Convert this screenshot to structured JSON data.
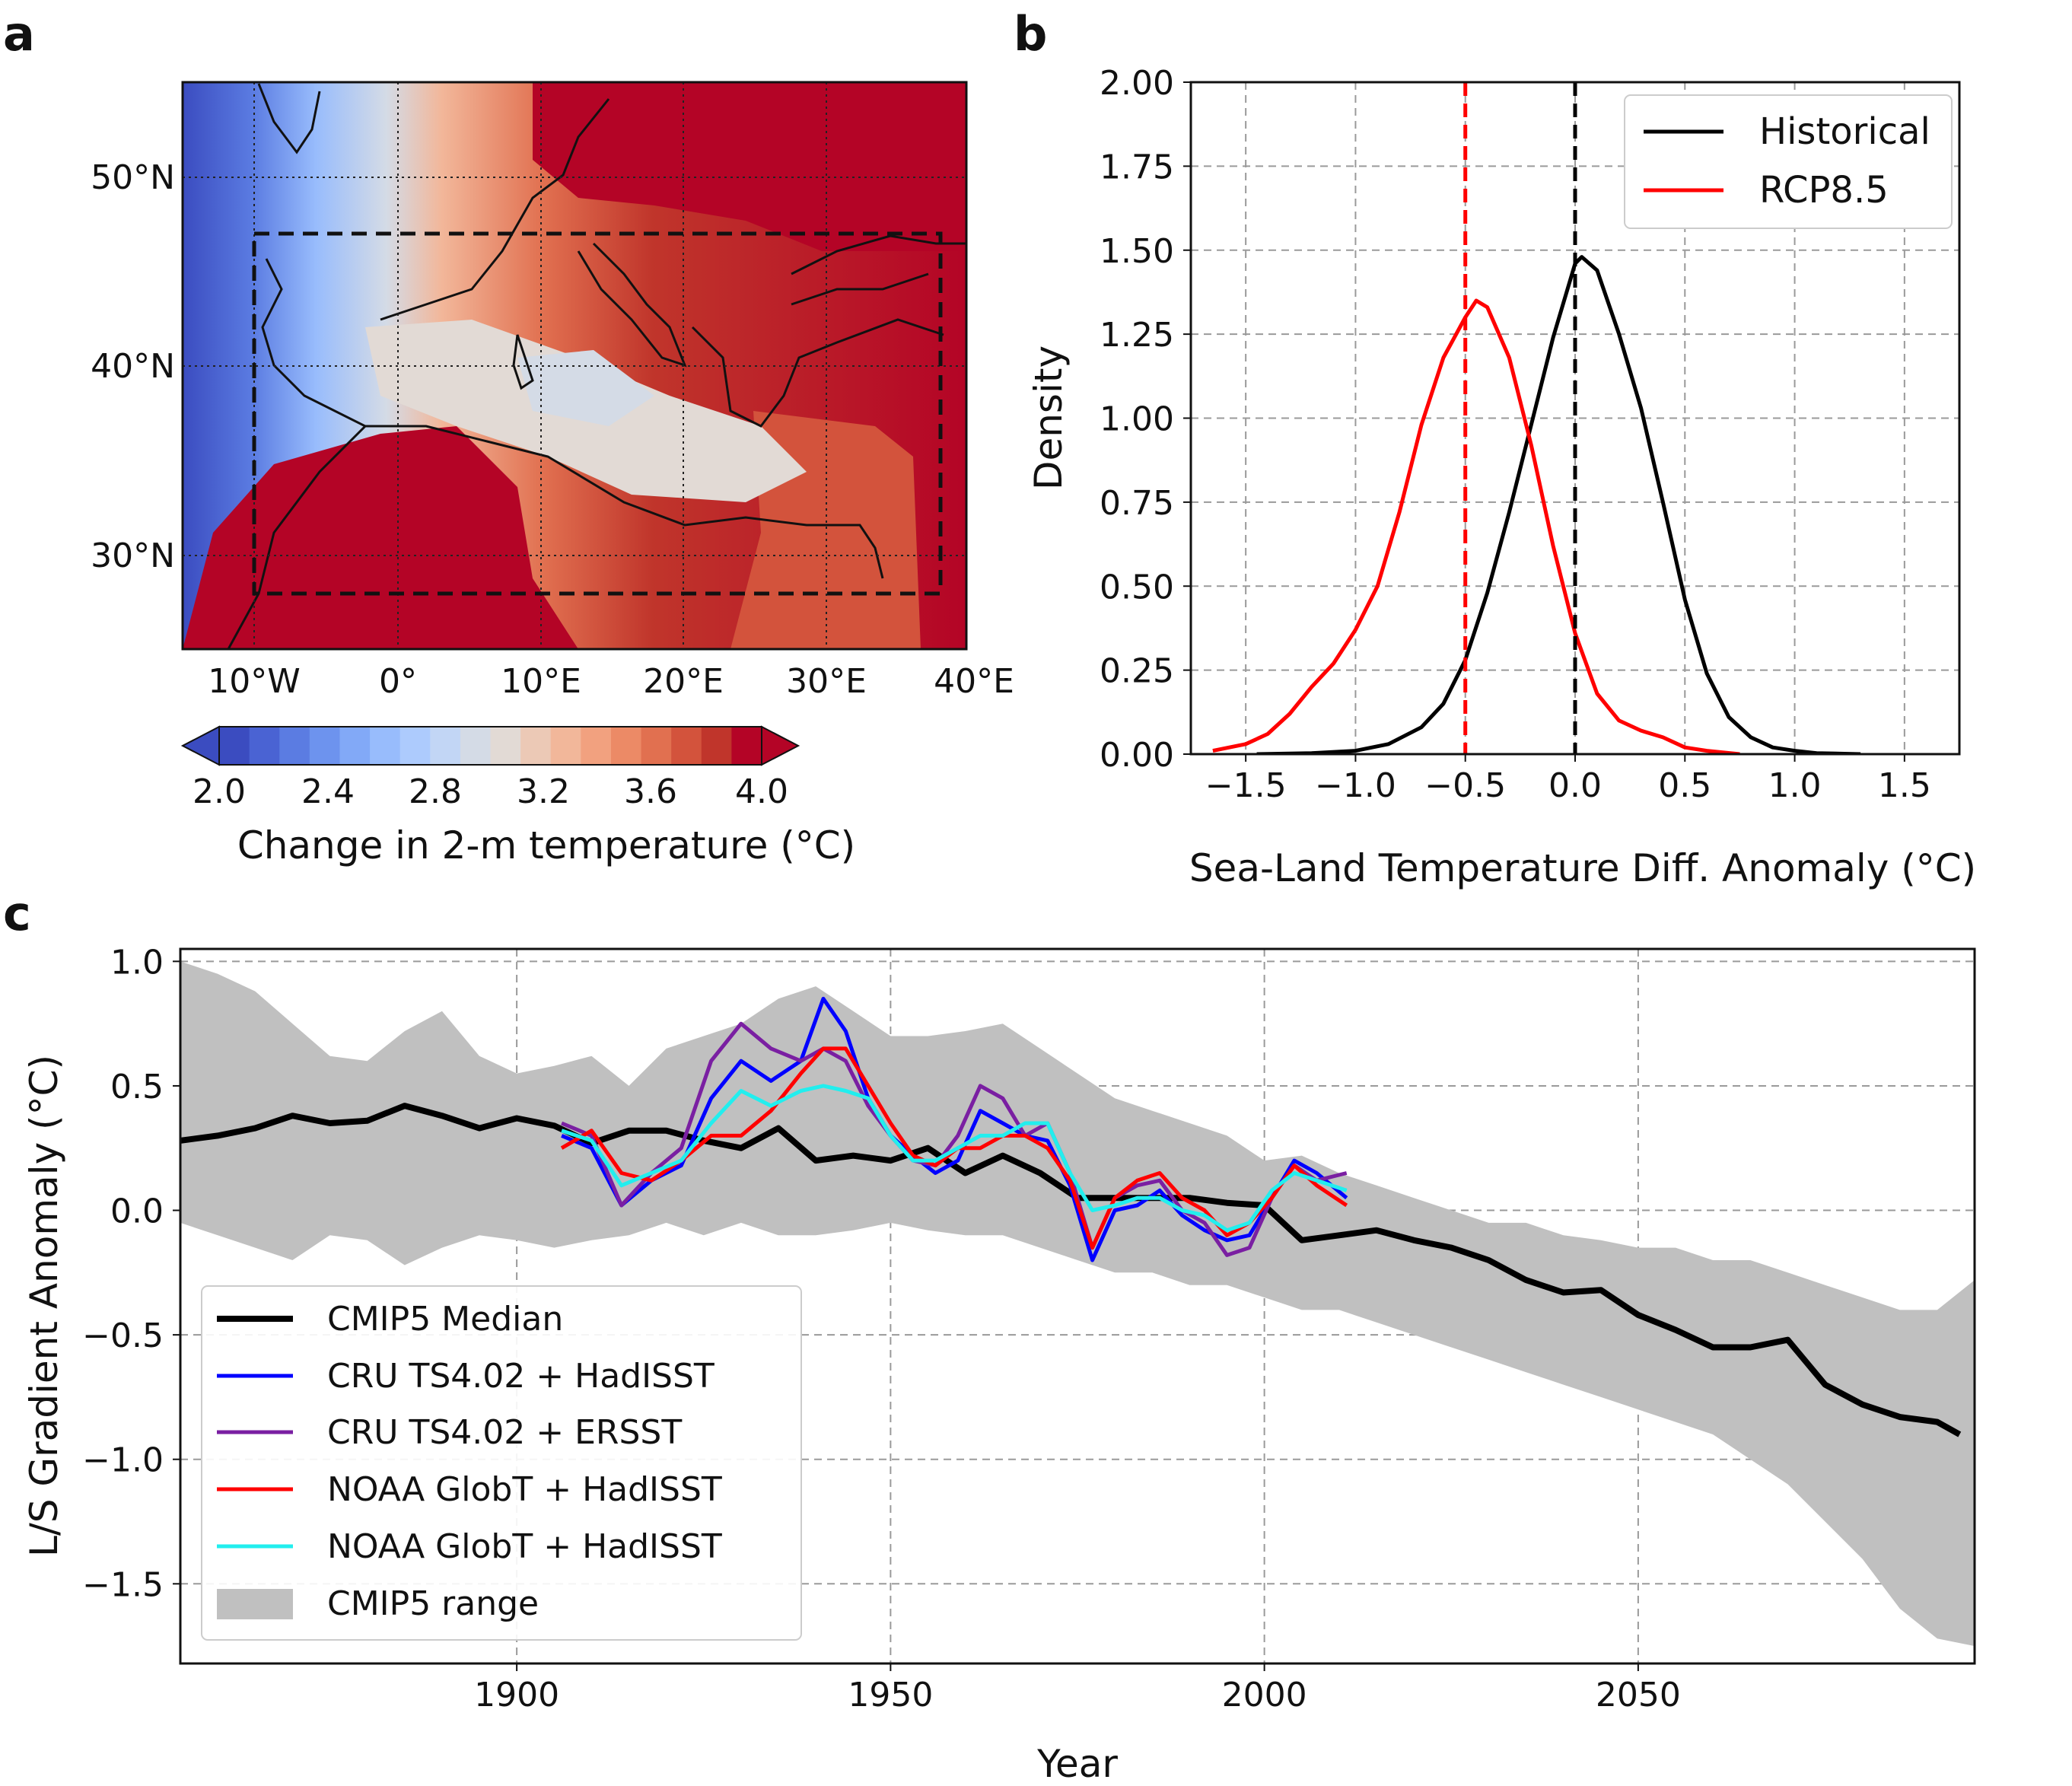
{
  "panels": {
    "a": {
      "label": "a",
      "lat_labels": [
        "50°N",
        "40°N",
        "30°N"
      ],
      "lon_labels": [
        "10°W",
        "0°",
        "10°E",
        "20°E",
        "30°E",
        "40°E"
      ],
      "colorbar": {
        "ticks": [
          "2.0",
          "2.4",
          "2.8",
          "3.2",
          "3.6",
          "4.0"
        ],
        "label": "Change in 2-m temperature (°C)",
        "colors": [
          "#3b4cc0",
          "#4a63d3",
          "#5b7ce2",
          "#6d93ee",
          "#82a9f7",
          "#98bcfc",
          "#adcbfd",
          "#c2d6f5",
          "#d4dbe6",
          "#e2dad5",
          "#ecc9b6",
          "#f2b79a",
          "#f2a17f",
          "#ec8a66",
          "#e17050",
          "#d3533c",
          "#c0352b",
          "#b40426"
        ]
      }
    },
    "b": {
      "label": "b"
    },
    "c": {
      "label": "c"
    }
  },
  "chart_data": [
    {
      "type": "line",
      "panel": "b",
      "xlabel": "Sea-Land Temperature Diff. Anomaly (°C)",
      "ylabel": "Density",
      "xlim": [
        -1.75,
        1.75
      ],
      "ylim": [
        0.0,
        2.0
      ],
      "xticks": [
        "−1.5",
        "−1.0",
        "−0.5",
        "0.0",
        "0.5",
        "1.0",
        "1.5"
      ],
      "yticks": [
        "0.00",
        "0.25",
        "0.50",
        "0.75",
        "1.00",
        "1.25",
        "1.50",
        "1.75",
        "2.00"
      ],
      "grid": true,
      "legend_position": "top-right",
      "series": [
        {
          "name": "Historical",
          "color": "#000000",
          "x": [
            -1.45,
            -1.2,
            -1.0,
            -0.85,
            -0.7,
            -0.6,
            -0.5,
            -0.4,
            -0.3,
            -0.2,
            -0.1,
            0.0,
            0.03,
            0.1,
            0.2,
            0.3,
            0.4,
            0.5,
            0.6,
            0.7,
            0.8,
            0.9,
            1.0,
            1.1,
            1.3
          ],
          "y": [
            0.0,
            0.003,
            0.01,
            0.03,
            0.08,
            0.15,
            0.28,
            0.48,
            0.72,
            0.98,
            1.24,
            1.46,
            1.48,
            1.44,
            1.25,
            1.03,
            0.75,
            0.46,
            0.24,
            0.11,
            0.05,
            0.02,
            0.01,
            0.003,
            0.0
          ]
        },
        {
          "name": "RCP8.5",
          "color": "#ff0000",
          "x": [
            -1.65,
            -1.5,
            -1.4,
            -1.3,
            -1.2,
            -1.1,
            -1.0,
            -0.9,
            -0.8,
            -0.7,
            -0.6,
            -0.5,
            -0.45,
            -0.4,
            -0.3,
            -0.2,
            -0.1,
            0.0,
            0.1,
            0.2,
            0.3,
            0.4,
            0.5,
            0.6,
            0.75
          ],
          "y": [
            0.01,
            0.03,
            0.06,
            0.12,
            0.2,
            0.27,
            0.37,
            0.5,
            0.72,
            0.98,
            1.18,
            1.3,
            1.35,
            1.33,
            1.18,
            0.92,
            0.62,
            0.36,
            0.18,
            0.1,
            0.07,
            0.05,
            0.02,
            0.01,
            0.0
          ]
        }
      ],
      "vlines": [
        {
          "x": -0.5,
          "color": "#ff0000",
          "style": "dashed"
        },
        {
          "x": 0.0,
          "color": "#000000",
          "style": "dashed"
        }
      ]
    },
    {
      "type": "line",
      "panel": "c",
      "xlabel": "Year",
      "ylabel": "L/S Gradient Anomaly (°C)",
      "xlim": [
        1855,
        2095
      ],
      "ylim": [
        -1.82,
        1.05
      ],
      "xticks": [
        "1900",
        "1950",
        "2000",
        "2050"
      ],
      "yticks": [
        "1.0",
        "0.5",
        "0.0",
        "−0.5",
        "−1.0",
        "−1.5"
      ],
      "grid": true,
      "legend_position": "bottom-left",
      "band": {
        "name": "CMIP5 range",
        "color": "#c0c0c0",
        "x": [
          1855,
          1860,
          1865,
          1870,
          1875,
          1880,
          1885,
          1890,
          1895,
          1900,
          1905,
          1910,
          1915,
          1920,
          1925,
          1930,
          1935,
          1940,
          1945,
          1950,
          1955,
          1960,
          1965,
          1970,
          1975,
          1980,
          1985,
          1990,
          1995,
          2000,
          2005,
          2010,
          2015,
          2020,
          2025,
          2030,
          2035,
          2040,
          2045,
          2050,
          2055,
          2060,
          2065,
          2070,
          2075,
          2080,
          2085,
          2090,
          2095
        ],
        "upper": [
          1.0,
          0.95,
          0.88,
          0.75,
          0.62,
          0.6,
          0.72,
          0.8,
          0.62,
          0.55,
          0.58,
          0.62,
          0.5,
          0.65,
          0.7,
          0.75,
          0.85,
          0.9,
          0.8,
          0.7,
          0.7,
          0.72,
          0.75,
          0.65,
          0.55,
          0.45,
          0.4,
          0.35,
          0.3,
          0.2,
          0.22,
          0.15,
          0.1,
          0.05,
          0.0,
          -0.05,
          -0.05,
          -0.1,
          -0.12,
          -0.15,
          -0.15,
          -0.2,
          -0.2,
          -0.25,
          -0.3,
          -0.35,
          -0.4,
          -0.4,
          -0.28
        ],
        "lower": [
          -0.05,
          -0.1,
          -0.15,
          -0.2,
          -0.1,
          -0.12,
          -0.22,
          -0.15,
          -0.1,
          -0.12,
          -0.15,
          -0.12,
          -0.1,
          -0.05,
          -0.1,
          -0.05,
          -0.1,
          -0.1,
          -0.08,
          -0.05,
          -0.08,
          -0.1,
          -0.1,
          -0.15,
          -0.2,
          -0.25,
          -0.25,
          -0.3,
          -0.3,
          -0.35,
          -0.4,
          -0.4,
          -0.45,
          -0.5,
          -0.55,
          -0.6,
          -0.65,
          -0.7,
          -0.75,
          -0.8,
          -0.85,
          -0.9,
          -1.0,
          -1.1,
          -1.25,
          -1.4,
          -1.6,
          -1.72,
          -1.75
        ]
      },
      "series": [
        {
          "name": "CMIP5 Median",
          "color": "#000000",
          "width": 8,
          "x": [
            1855,
            1860,
            1865,
            1870,
            1875,
            1880,
            1885,
            1890,
            1895,
            1900,
            1905,
            1910,
            1915,
            1920,
            1925,
            1930,
            1935,
            1940,
            1945,
            1950,
            1955,
            1960,
            1965,
            1970,
            1975,
            1980,
            1985,
            1990,
            1995,
            2000,
            2005,
            2010,
            2015,
            2020,
            2025,
            2030,
            2035,
            2040,
            2045,
            2050,
            2055,
            2060,
            2065,
            2070,
            2075,
            2080,
            2085,
            2090,
            2093
          ],
          "y": [
            0.28,
            0.3,
            0.33,
            0.38,
            0.35,
            0.36,
            0.42,
            0.38,
            0.33,
            0.37,
            0.34,
            0.27,
            0.32,
            0.32,
            0.28,
            0.25,
            0.33,
            0.2,
            0.22,
            0.2,
            0.25,
            0.15,
            0.22,
            0.15,
            0.05,
            0.05,
            0.05,
            0.05,
            0.03,
            0.02,
            -0.12,
            -0.1,
            -0.08,
            -0.12,
            -0.15,
            -0.2,
            -0.28,
            -0.33,
            -0.32,
            -0.42,
            -0.48,
            -0.55,
            -0.55,
            -0.52,
            -0.7,
            -0.78,
            -0.83,
            -0.85,
            -0.9
          ]
        },
        {
          "name": "CRU TS4.02 + HadISST",
          "color": "#0000ff",
          "width": 5,
          "x": [
            1906,
            1910,
            1914,
            1918,
            1922,
            1926,
            1930,
            1934,
            1938,
            1941,
            1944,
            1947,
            1950,
            1953,
            1956,
            1959,
            1962,
            1965,
            1968,
            1971,
            1974,
            1977,
            1980,
            1983,
            1986,
            1989,
            1992,
            1995,
            1998,
            2001,
            2004,
            2007,
            2011
          ],
          "y": [
            0.3,
            0.25,
            0.02,
            0.12,
            0.18,
            0.45,
            0.6,
            0.52,
            0.6,
            0.85,
            0.72,
            0.45,
            0.3,
            0.22,
            0.15,
            0.2,
            0.4,
            0.35,
            0.3,
            0.28,
            0.1,
            -0.2,
            0.0,
            0.02,
            0.08,
            -0.02,
            -0.08,
            -0.12,
            -0.1,
            0.05,
            0.2,
            0.15,
            0.05
          ]
        },
        {
          "name": "CRU TS4.02 + ERSST",
          "color": "#7a1fa2",
          "width": 5,
          "x": [
            1906,
            1910,
            1914,
            1918,
            1922,
            1926,
            1930,
            1934,
            1938,
            1941,
            1944,
            1947,
            1950,
            1953,
            1956,
            1959,
            1962,
            1965,
            1968,
            1971,
            1974,
            1977,
            1980,
            1983,
            1986,
            1989,
            1992,
            1995,
            1998,
            2001,
            2004,
            2007,
            2011
          ],
          "y": [
            0.35,
            0.3,
            0.02,
            0.15,
            0.25,
            0.6,
            0.75,
            0.65,
            0.6,
            0.65,
            0.6,
            0.42,
            0.3,
            0.2,
            0.18,
            0.3,
            0.5,
            0.45,
            0.3,
            0.35,
            0.15,
            -0.15,
            0.05,
            0.1,
            0.12,
            0.0,
            -0.05,
            -0.18,
            -0.15,
            0.05,
            0.18,
            0.12,
            0.15
          ]
        },
        {
          "name": "NOAA GlobT + HadISST",
          "color": "#ff0000",
          "width": 5,
          "x": [
            1906,
            1910,
            1914,
            1918,
            1922,
            1926,
            1930,
            1934,
            1938,
            1941,
            1944,
            1947,
            1950,
            1953,
            1956,
            1959,
            1962,
            1965,
            1968,
            1971,
            1974,
            1977,
            1980,
            1983,
            1986,
            1989,
            1992,
            1995,
            1998,
            2001,
            2004,
            2007,
            2011
          ],
          "y": [
            0.25,
            0.32,
            0.15,
            0.12,
            0.2,
            0.3,
            0.3,
            0.4,
            0.55,
            0.65,
            0.65,
            0.5,
            0.35,
            0.22,
            0.18,
            0.25,
            0.25,
            0.3,
            0.3,
            0.25,
            0.12,
            -0.15,
            0.05,
            0.12,
            0.15,
            0.05,
            0.0,
            -0.1,
            -0.05,
            0.05,
            0.18,
            0.1,
            0.02
          ]
        },
        {
          "name": "NOAA GlobT + HadISST",
          "color": "#22eeee",
          "width": 5,
          "x": [
            1906,
            1910,
            1914,
            1918,
            1922,
            1926,
            1930,
            1934,
            1938,
            1941,
            1944,
            1947,
            1950,
            1953,
            1956,
            1959,
            1962,
            1965,
            1968,
            1971,
            1974,
            1977,
            1980,
            1983,
            1986,
            1989,
            1992,
            1995,
            1998,
            2001,
            2004,
            2007,
            2011
          ],
          "y": [
            0.32,
            0.28,
            0.1,
            0.15,
            0.2,
            0.35,
            0.48,
            0.42,
            0.48,
            0.5,
            0.48,
            0.45,
            0.3,
            0.2,
            0.2,
            0.25,
            0.3,
            0.3,
            0.35,
            0.35,
            0.15,
            0.0,
            0.02,
            0.05,
            0.05,
            0.0,
            -0.02,
            -0.08,
            -0.05,
            0.08,
            0.15,
            0.12,
            0.08
          ]
        }
      ]
    }
  ]
}
